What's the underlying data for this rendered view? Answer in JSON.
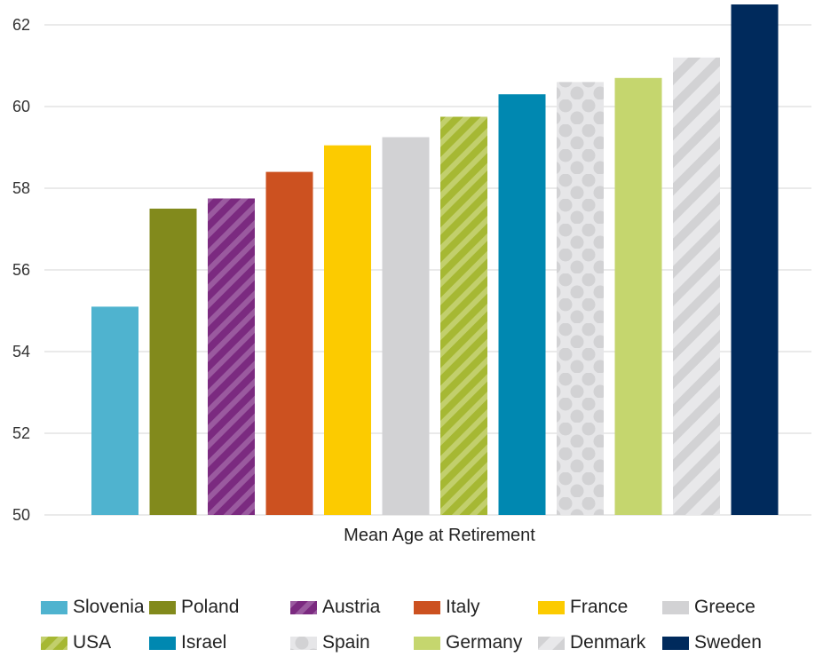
{
  "chart_data": {
    "type": "bar",
    "xlabel": "Mean Age at Retirement",
    "ylim": [
      50,
      62.5
    ],
    "yticks": [
      50,
      52,
      54,
      56,
      58,
      60,
      62
    ],
    "grid": true,
    "legend_position": "bottom",
    "series": [
      {
        "name": "Slovenia",
        "value": 55.1,
        "color": "#4fb3cf",
        "pattern": "solid"
      },
      {
        "name": "Poland",
        "value": 57.5,
        "color": "#828a1c",
        "pattern": "solid"
      },
      {
        "name": "Austria",
        "value": 57.75,
        "color": "#7b2a80",
        "pattern": "diagonal-stripes"
      },
      {
        "name": "Italy",
        "value": 58.4,
        "color": "#cc5120",
        "pattern": "solid"
      },
      {
        "name": "France",
        "value": 59.05,
        "color": "#fccb00",
        "pattern": "solid"
      },
      {
        "name": "Greece",
        "value": 59.25,
        "color": "#d2d2d4",
        "pattern": "solid"
      },
      {
        "name": "USA",
        "value": 59.75,
        "color": "#a6b833",
        "pattern": "diagonal-stripes"
      },
      {
        "name": "Israel",
        "value": 60.3,
        "color": "#0088b1",
        "pattern": "solid"
      },
      {
        "name": "Spain",
        "value": 60.6,
        "color": "#e6e6e8",
        "pattern": "dots"
      },
      {
        "name": "Germany",
        "value": 60.7,
        "color": "#c5d66e",
        "pattern": "solid"
      },
      {
        "name": "Denmark",
        "value": 61.2,
        "color": "#e8e8ea",
        "pattern": "diagonal-stripes"
      },
      {
        "name": "Sweden",
        "value": 62.5,
        "color": "#002a5c",
        "pattern": "solid"
      }
    ]
  }
}
